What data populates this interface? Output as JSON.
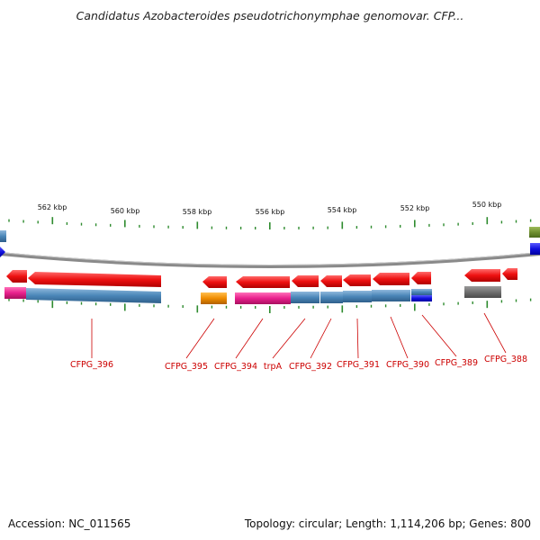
{
  "title": "Candidatus Azobacteroides pseudotrichonymphae genomovar. CFP...",
  "footer": {
    "accession": "Accession: NC_011565",
    "topology": "Topology: circular; Length: 1,114,206 bp; Genes: 800"
  },
  "colors": {
    "gene_red": "#ee1111",
    "cds_blue": "#4a86b8",
    "magenta": "#e8208c",
    "orange": "#f08c00",
    "dark_blue": "#1010dd",
    "gray": "#707070",
    "olive": "#6f8f2f",
    "label_red": "#cc0000",
    "tick_green": "#2e8b2e",
    "backbone": "#8a8a8a"
  },
  "scale_labels": [
    "562 kbp",
    "560 kbp",
    "558 kbp",
    "556 kbp",
    "554 kbp",
    "552 kbp",
    "550 kbp"
  ],
  "genes": [
    {
      "name": "CFPG_396"
    },
    {
      "name": "CFPG_395"
    },
    {
      "name": "CFPG_394"
    },
    {
      "name": "trpA"
    },
    {
      "name": "CFPG_392"
    },
    {
      "name": "CFPG_391"
    },
    {
      "name": "CFPG_390"
    },
    {
      "name": "CFPG_389"
    },
    {
      "name": "CFPG_388"
    }
  ]
}
